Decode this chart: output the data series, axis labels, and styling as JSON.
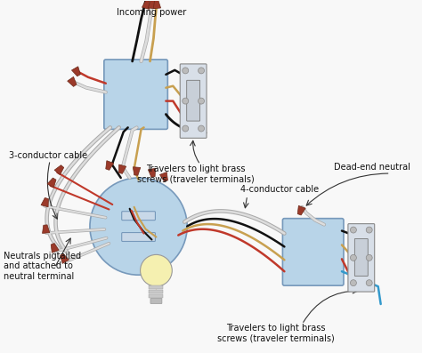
{
  "bg_color": "#f5f5f5",
  "labels": {
    "incoming_power": "Incoming power",
    "three_conductor": "3-conductor cable",
    "travelers_top": "Travelers to light brass\nscrews (traveler terminals)",
    "four_conductor": "4-conductor cable",
    "dead_end": "Dead-end neutral",
    "neutrals": "Neutrals pigtailed\nand attached to\nneutral terminal",
    "travelers_bottom": "Travelers to light brass\nscrews (traveler terminals)"
  },
  "wire_colors": {
    "black": "#111111",
    "white": "#dddddd",
    "white_outline": "#aaaaaa",
    "red": "#c0392b",
    "tan": "#c8a050",
    "blue": "#3399cc",
    "gray": "#888888"
  },
  "box_color": "#b8d4e8",
  "box_edge": "#7799bb",
  "switch_color": "#d8dfe8",
  "connector_color": "#9B3A2A",
  "font_size": 7.0,
  "font_size_sm": 6.5
}
